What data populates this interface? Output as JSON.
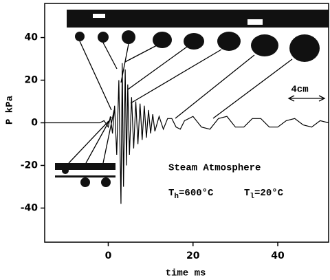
{
  "chart_data": {
    "type": "line",
    "x_label": "time  ms",
    "y_label": "P  kPa",
    "xlim": [
      -15,
      52
    ],
    "ylim": [
      -56,
      56
    ],
    "xticks": [
      0,
      20,
      40
    ],
    "yticks": [
      -40,
      -20,
      0,
      20,
      40
    ],
    "color": "#000000",
    "x": [
      -15,
      -2,
      -1,
      0,
      0.5,
      1,
      1.5,
      2,
      2.5,
      3,
      3.3,
      3.6,
      4,
      4.3,
      4.6,
      5,
      5.5,
      6,
      6.5,
      7,
      7.5,
      8,
      8.5,
      9,
      9.5,
      10,
      10.5,
      11,
      12,
      13,
      14,
      15,
      16,
      17,
      18,
      20,
      22,
      24,
      26,
      28,
      30,
      32,
      34,
      36,
      38,
      40,
      42,
      44,
      46,
      48,
      50,
      52
    ],
    "values": [
      0,
      0,
      1,
      -2,
      3,
      -5,
      8,
      -15,
      20,
      -38,
      28,
      -30,
      25,
      -20,
      18,
      -15,
      12,
      -12,
      10,
      -10,
      9,
      -8,
      8,
      -7,
      6,
      -5,
      4,
      -4,
      3,
      -3,
      2,
      2,
      -2,
      -3,
      1,
      3,
      -2,
      -3,
      2,
      3,
      -2,
      -2,
      2,
      2,
      -2,
      -2,
      1,
      2,
      -1,
      -2,
      1,
      0
    ],
    "annotations": {
      "atmosphere": "Steam Atmosphere",
      "th": [
        "T",
        "h",
        "=600°C"
      ],
      "tl": [
        "T",
        "l",
        "=20°C"
      ],
      "scale": "4cm"
    }
  }
}
